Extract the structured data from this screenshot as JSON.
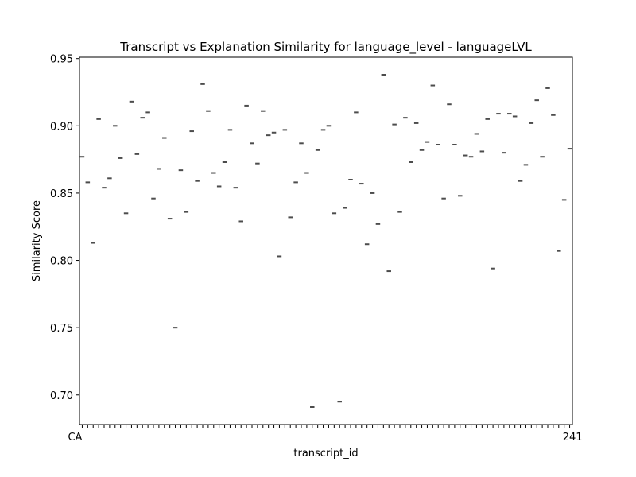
{
  "chart_data": {
    "type": "box",
    "title": "Transcript vs Explanation Similarity for language_level - languageLVL",
    "xlabel": "transcript_id",
    "ylabel": "Similarity Score",
    "ylim": [
      0.678,
      0.951
    ],
    "yticks": [
      0.7,
      0.75,
      0.8,
      0.85,
      0.9,
      0.95
    ],
    "ytick_labels": [
      "0.70",
      "0.75",
      "0.80",
      "0.85",
      "0.90",
      "0.95"
    ],
    "grid": false,
    "box_color": "#4c4c4c",
    "xtick_first_label": "CA",
    "xtick_last_label": "241",
    "values": [
      0.877,
      0.858,
      0.813,
      0.905,
      0.854,
      0.861,
      0.9,
      0.876,
      0.835,
      0.918,
      0.879,
      0.906,
      0.91,
      0.846,
      0.868,
      0.891,
      0.831,
      0.75,
      0.867,
      0.836,
      0.896,
      0.859,
      0.931,
      0.911,
      0.865,
      0.855,
      0.873,
      0.897,
      0.854,
      0.829,
      0.915,
      0.887,
      0.872,
      0.911,
      0.893,
      0.895,
      0.803,
      0.897,
      0.832,
      0.858,
      0.887,
      0.865,
      0.691,
      0.882,
      0.897,
      0.9,
      0.835,
      0.695,
      0.839,
      0.86,
      0.91,
      0.857,
      0.812,
      0.85,
      0.827,
      0.938,
      0.792,
      0.901,
      0.836,
      0.906,
      0.873,
      0.902,
      0.882,
      0.888,
      0.93,
      0.886,
      0.846,
      0.916,
      0.886,
      0.848,
      0.878,
      0.877,
      0.894,
      0.881,
      0.905,
      0.794,
      0.909,
      0.88,
      0.909,
      0.907,
      0.859,
      0.871,
      0.902,
      0.919,
      0.877,
      0.928,
      0.908,
      0.807,
      0.845,
      0.883
    ]
  }
}
